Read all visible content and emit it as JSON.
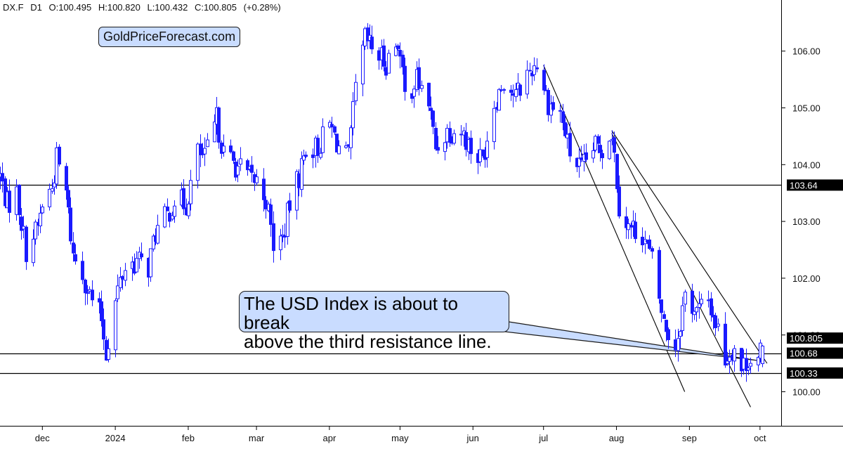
{
  "header": {
    "symbol": "DX.F",
    "timeframe": "D1",
    "open": "O:100.495",
    "high": "H:100.820",
    "low": "L:100.432",
    "close": "C:100.805",
    "change": "(+0.28%)"
  },
  "watermark": "GoldPriceForecast.com",
  "annotation": {
    "line1": "The USD Index is about to break",
    "line2": "above the third resistance line."
  },
  "colors": {
    "candle": "#1a1aff",
    "label_bg": "#c9dcff",
    "price_label_bg": "#000000"
  },
  "chart_data": {
    "type": "candlestick",
    "instrument": "DX.F",
    "timeframe": "D1",
    "y_ticks": [
      100.0,
      101.0,
      102.0,
      103.0,
      104.0,
      105.0,
      106.0
    ],
    "y_tick_labels": [
      "100.00",
      "101.00",
      "102.00",
      "103.00",
      "104.00",
      "105.00",
      "106.00"
    ],
    "x_tick_labels": [
      "dec",
      "2024",
      "feb",
      "mar",
      "apr",
      "may",
      "jun",
      "jul",
      "aug",
      "sep",
      "oct"
    ],
    "x_tick_dates": [
      "2023-12-01",
      "2024-01-01",
      "2024-02-01",
      "2024-03-01",
      "2024-04-01",
      "2024-05-01",
      "2024-06-01",
      "2024-07-01",
      "2024-08-01",
      "2024-09-01",
      "2024-10-01"
    ],
    "x_range": [
      "2023-11-13",
      "2024-10-10"
    ],
    "y_range": [
      99.4,
      106.9
    ],
    "grid": false,
    "horizontal_levels": [
      103.64,
      100.68,
      100.33
    ],
    "horizontal_level_labels": [
      "103.64",
      "100.68",
      "100.33"
    ],
    "last_price": 100.805,
    "last_price_label": "100.805",
    "trend_lines": [
      {
        "from": [
          "2024-07-01",
          105.75
        ],
        "to": [
          "2024-08-30",
          100.0
        ]
      },
      {
        "from": [
          "2024-07-30",
          104.55
        ],
        "to": [
          "2024-09-27",
          99.73
        ]
      },
      {
        "from": [
          "2024-07-30",
          104.6
        ],
        "to": [
          "2024-10-04",
          100.5
        ]
      }
    ],
    "annotation_pointer": [
      "2024-09-30",
      100.55
    ],
    "path": [
      [
        "2023-11-13",
        103.8
      ],
      [
        "2023-11-16",
        103.3
      ],
      [
        "2023-11-20",
        103.5
      ],
      [
        "2023-11-24",
        102.5
      ],
      [
        "2023-11-29",
        102.9
      ],
      [
        "2023-12-01",
        103.3
      ],
      [
        "2023-12-05",
        103.6
      ],
      [
        "2023-12-07",
        104.1
      ],
      [
        "2023-12-11",
        103.5
      ],
      [
        "2023-12-14",
        102.4
      ],
      [
        "2023-12-18",
        102.1
      ],
      [
        "2023-12-21",
        101.7
      ],
      [
        "2023-12-26",
        101.3
      ],
      [
        "2023-12-28",
        100.7
      ],
      [
        "2024-01-02",
        101.8
      ],
      [
        "2024-01-05",
        102.2
      ],
      [
        "2024-01-10",
        102.3
      ],
      [
        "2024-01-15",
        102.2
      ],
      [
        "2024-01-18",
        102.8
      ],
      [
        "2024-01-23",
        103.1
      ],
      [
        "2024-01-26",
        103.4
      ],
      [
        "2024-01-31",
        103.3
      ],
      [
        "2024-02-05",
        104.2
      ],
      [
        "2024-02-08",
        104.1
      ],
      [
        "2024-02-13",
        104.8
      ],
      [
        "2024-02-16",
        104.2
      ],
      [
        "2024-02-21",
        104.0
      ],
      [
        "2024-02-26",
        103.8
      ],
      [
        "2024-03-01",
        103.7
      ],
      [
        "2024-03-05",
        103.4
      ],
      [
        "2024-03-08",
        102.6
      ],
      [
        "2024-03-12",
        102.7
      ],
      [
        "2024-03-15",
        103.3
      ],
      [
        "2024-03-19",
        103.8
      ],
      [
        "2024-03-22",
        104.3
      ],
      [
        "2024-03-27",
        104.3
      ],
      [
        "2024-04-01",
        104.7
      ],
      [
        "2024-04-05",
        104.3
      ],
      [
        "2024-04-09",
        104.1
      ],
      [
        "2024-04-12",
        105.3
      ],
      [
        "2024-04-16",
        106.2
      ],
      [
        "2024-04-20",
        106.0
      ],
      [
        "2024-04-25",
        105.8
      ],
      [
        "2024-04-30",
        106.2
      ],
      [
        "2024-05-03",
        105.2
      ],
      [
        "2024-05-08",
        105.5
      ],
      [
        "2024-05-13",
        105.1
      ],
      [
        "2024-05-16",
        104.3
      ],
      [
        "2024-05-21",
        104.6
      ],
      [
        "2024-05-27",
        104.6
      ],
      [
        "2024-06-01",
        104.2
      ],
      [
        "2024-06-05",
        104.1
      ],
      [
        "2024-06-10",
        105.1
      ],
      [
        "2024-06-14",
        105.5
      ],
      [
        "2024-06-19",
        105.2
      ],
      [
        "2024-06-24",
        105.6
      ],
      [
        "2024-06-28",
        105.8
      ],
      [
        "2024-07-03",
        105.1
      ],
      [
        "2024-07-08",
        104.9
      ],
      [
        "2024-07-12",
        104.2
      ],
      [
        "2024-07-17",
        103.9
      ],
      [
        "2024-07-22",
        104.3
      ],
      [
        "2024-07-26",
        104.3
      ],
      [
        "2024-07-30",
        104.6
      ],
      [
        "2024-08-02",
        103.3
      ],
      [
        "2024-08-06",
        102.9
      ],
      [
        "2024-08-12",
        102.8
      ],
      [
        "2024-08-16",
        102.3
      ],
      [
        "2024-08-21",
        101.2
      ],
      [
        "2024-08-26",
        100.8
      ],
      [
        "2024-08-30",
        101.7
      ],
      [
        "2024-09-04",
        101.4
      ],
      [
        "2024-09-09",
        101.6
      ],
      [
        "2024-09-13",
        101.1
      ],
      [
        "2024-09-16",
        100.6
      ],
      [
        "2024-09-20",
        100.8
      ],
      [
        "2024-09-23",
        100.4
      ],
      [
        "2024-09-26",
        100.6
      ],
      [
        "2024-09-30",
        100.5
      ],
      [
        "2024-10-02",
        100.805
      ]
    ]
  }
}
